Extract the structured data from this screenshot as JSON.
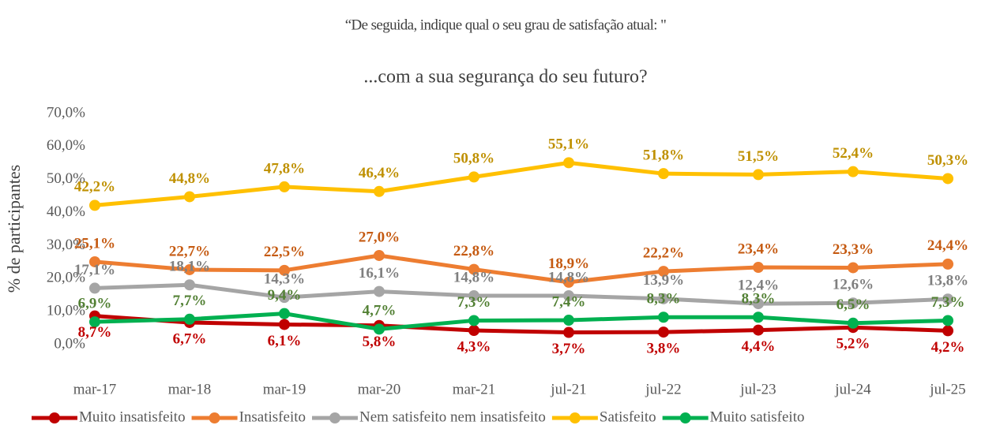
{
  "chart_data": {
    "type": "line",
    "title": "“De seguida, indique qual o seu grau de satisfação atual: \"",
    "subtitle": "...com a sua segurança do seu futuro?",
    "y_label": "% de participantes",
    "categories": [
      "mar-17",
      "mar-18",
      "mar-19",
      "mar-20",
      "mar-21",
      "jul-21",
      "jul-22",
      "jul-23",
      "jul-24",
      "jul-25"
    ],
    "ylim": [
      0,
      70
    ],
    "yticks": [
      {
        "value": 0,
        "label": "0,0%"
      },
      {
        "value": 10,
        "label": "10,0%"
      },
      {
        "value": 20,
        "label": "20,0%"
      },
      {
        "value": 30,
        "label": "30,0%"
      },
      {
        "value": 40,
        "label": "40,0%"
      },
      {
        "value": 50,
        "label": "50,0%"
      },
      {
        "value": 60,
        "label": "60,0%"
      },
      {
        "value": 70,
        "label": "70,0%"
      }
    ],
    "legend": "bottom",
    "series": [
      {
        "name": "Muito insatisfeito",
        "color": "#c00000",
        "label_color": "#c00000",
        "label_position": "below",
        "values": [
          8.7,
          6.7,
          6.1,
          5.8,
          4.3,
          3.7,
          3.8,
          4.4,
          5.2,
          4.2
        ],
        "value_labels": [
          "8,7%",
          "6,7%",
          "6,1%",
          "5,8%",
          "4,3%",
          "3,7%",
          "3,8%",
          "4,4%",
          "5,2%",
          "4,2%"
        ]
      },
      {
        "name": "Insatisfeito",
        "color": "#ed7d31",
        "label_color": "#c55a11",
        "label_position": "above",
        "values": [
          25.1,
          22.7,
          22.5,
          27.0,
          22.8,
          18.9,
          22.2,
          23.4,
          23.3,
          24.4
        ],
        "value_labels": [
          "25,1%",
          "22,7%",
          "22,5%",
          "27,0%",
          "22,8%",
          "18,9%",
          "22,2%",
          "23,4%",
          "23,3%",
          "24,4%"
        ]
      },
      {
        "name": "Nem satisfeito nem insatisfeito",
        "color": "#a5a5a5",
        "label_color": "#7f7f7f",
        "label_position": "above",
        "values": [
          17.1,
          18.1,
          14.3,
          16.1,
          14.8,
          14.8,
          13.9,
          12.4,
          12.6,
          13.8
        ],
        "value_labels": [
          "17,1%",
          "18,1%",
          "14,3%",
          "16,1%",
          "14,8%",
          "14,8%",
          "13,9%",
          "12,4%",
          "12,6%",
          "13,8%"
        ]
      },
      {
        "name": "Satisfeito",
        "color": "#ffc000",
        "label_color": "#bf9000",
        "label_position": "above",
        "values": [
          42.2,
          44.8,
          47.8,
          46.4,
          50.8,
          55.1,
          51.8,
          51.5,
          52.4,
          50.3
        ],
        "value_labels": [
          "42,2%",
          "44,8%",
          "47,8%",
          "46,4%",
          "50,8%",
          "55,1%",
          "51,8%",
          "51,5%",
          "52,4%",
          "50,3%"
        ]
      },
      {
        "name": "Muito satisfeito",
        "color": "#00b050",
        "label_color": "#538135",
        "label_position": "above",
        "values": [
          6.9,
          7.7,
          9.4,
          4.7,
          7.3,
          7.4,
          8.3,
          8.3,
          6.5,
          7.3
        ],
        "value_labels": [
          "6,9%",
          "7,7%",
          "9,4%",
          "4,7%",
          "7,3%",
          "7,4%",
          "8,3%",
          "8,3%",
          "6,5%",
          "7,3%"
        ]
      }
    ]
  }
}
